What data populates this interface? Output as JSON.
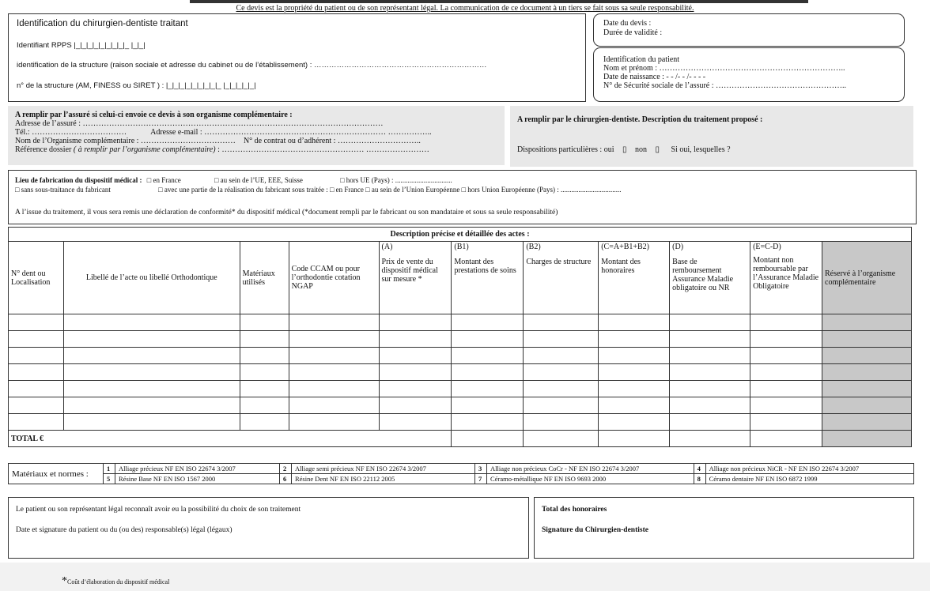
{
  "notice": "Ce devis est la propriété du patient ou de son représentant légal. La communication de ce document à un tiers se fait sous sa seule responsabilité.",
  "dentist": {
    "title": "Identification du chirurgien-dentiste traitant",
    "rpps": "Identifiant RPPS |_|_|_|_|_|_|_|_|_ |_|_|",
    "structure": "identification de la structure (raison sociale et adresse du cabinet ou de l’établissement) : ……………………………………………………………",
    "structure_no": "n° de la structure (AM, FINESS ou SIRET ) : |_|_|_|_|_|_|_|_|_ |_|_|_|_|_|"
  },
  "quote": {
    "date": "Date du devis :",
    "validity": "Durée de validité :"
  },
  "patient": {
    "title": "Identification du patient",
    "name": "Nom et prénom : ……………………………………………………………..",
    "birth": "Date de naissance : - - /- - /- - - -",
    "ssn": "N° de Sécurité sociale de l’assuré : ………………………………………….."
  },
  "insured": {
    "title": "A remplir par l’assuré si celui-ci envoie ce devis à son organisme complémentaire :",
    "address": "Adresse de l’assuré : ……………………………………………………………………………………………………",
    "phone": "Tél.: ………………………………",
    "email": "Adresse e-mail : …………………………………………………………… ……………..",
    "org": "Nom de l’Organisme complémentaire : ………………………………",
    "contract": "N° de contrat ou d’adhérent : …………………………..",
    "ref_label": "Référence dossier ",
    "ref_italic": "( à remplir par l’organisme complémentaire)",
    "ref_dots": " : ……………………………………………… ……………………"
  },
  "treatment": {
    "title": "A remplir par le chirurgien-dentiste. Description du traitement proposé :",
    "provisions": "Dispositions particulières :  oui",
    "no": "non",
    "which": "Si oui, lesquelles ?",
    "box_glyph": "▯"
  },
  "fabrication": {
    "label": "Lieu de fabrication du dispositif médical :",
    "opt1": "□ en France",
    "opt2": "□ au sein de l’UE, EEE, Suisse",
    "opt3": "□ hors UE (Pays) : ................................",
    "opt4": "□ sans sous-traitance du fabricant",
    "opt5": "□ avec une partie de la réalisation du fabricant sous traitée :  □ en France   □ au sein de l’Union Européenne   □ hors Union Européenne (Pays) : ..................................",
    "conformity": "A l’issue du traitement, il vous sera remis une déclaration de conformité* du dispositif médical (*document rempli par le fabricant ou son mandataire et sous sa seule responsabilité)"
  },
  "acts": {
    "title": "Description précise et détaillée des actes :",
    "columns": [
      {
        "code": "",
        "label": "N° dent ou Localisation"
      },
      {
        "code": "",
        "label": "Libellé de l’acte ou libellé Orthodontique"
      },
      {
        "code": "",
        "label": "Matériaux utilisés"
      },
      {
        "code": "",
        "label": "Code CCAM ou pour l’orthodontie cotation NGAP"
      },
      {
        "code": "(A)",
        "label": "Prix de vente du dispositif médical sur mesure *"
      },
      {
        "code": "(B1)",
        "label": "Montant des prestations de soins"
      },
      {
        "code": "(B2)",
        "label": "Charges de structure"
      },
      {
        "code": "(C=A+B1+B2)",
        "label": "Montant des honoraires"
      },
      {
        "code": "(D)",
        "label": "Base de remboursement Assurance Maladie obligatoire ou NR"
      },
      {
        "code": "(E=C-D)",
        "label": "Montant non remboursable par l’Assurance Maladie Obligatoire"
      },
      {
        "code": "",
        "label": "Réservé à l’organisme complémentaire"
      }
    ],
    "total": "TOTAL €"
  },
  "materials": {
    "label": "Matériaux et normes :",
    "items": [
      {
        "n": "1",
        "t": "Alliage précieux NF EN ISO 22674 3/2007"
      },
      {
        "n": "2",
        "t": "Alliage semi précieux NF EN ISO 22674 3/2007"
      },
      {
        "n": "3",
        "t": "Alliage non précieux CoCr - NF EN ISO 22674 3/2007"
      },
      {
        "n": "4",
        "t": "Alliage non précieux NiCR - NF EN ISO 22674 3/2007"
      },
      {
        "n": "5",
        "t": "Résine Base NF EN ISO 1567 2000"
      },
      {
        "n": "6",
        "t": "Résine Dent NF EN ISO 22112 2005"
      },
      {
        "n": "7",
        "t": "Céramo-métallique NF EN ISO 9693 2000"
      },
      {
        "n": "8",
        "t": "Céramo dentaire NF EN ISO 6872 1999"
      }
    ]
  },
  "signature": {
    "choice": "Le patient ou son représentant légal reconnaît avoir eu la possibilité du choix de son traitement",
    "patient_sig": "Date et signature du patient ou du (ou des) responsable(s) légal (légaux)",
    "total_fees": "Total des honoraires",
    "dentist_sig": "Signature du Chirurgien-dentiste"
  },
  "footnote": {
    "star": "*",
    "text": "Coût d’élaboration du dispositif médical"
  }
}
